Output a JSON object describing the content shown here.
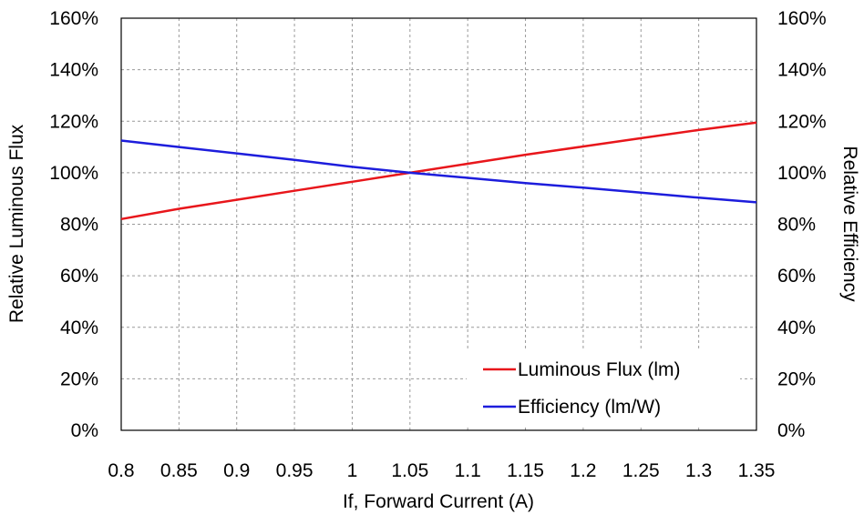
{
  "chart_data": {
    "type": "line",
    "title": "",
    "xlabel": "If, Forward Current (A)",
    "ylabel_left": "Relative Luminous Flux",
    "ylabel_right": "Relative Efficiency",
    "xlim": [
      0.8,
      1.35
    ],
    "ylim": [
      0,
      160
    ],
    "x_ticks": [
      "0.8",
      "0.85",
      "0.9",
      "0.95",
      "1",
      "1.05",
      "1.1",
      "1.15",
      "1.2",
      "1.25",
      "1.3",
      "1.35"
    ],
    "y_ticks_left": [
      "0%",
      "20%",
      "40%",
      "60%",
      "80%",
      "100%",
      "120%",
      "140%",
      "160%"
    ],
    "y_ticks_right": [
      "0%",
      "20%",
      "40%",
      "60%",
      "80%",
      "100%",
      "120%",
      "140%",
      "160%"
    ],
    "grid": true,
    "legend_position": "bottom-right",
    "series": [
      {
        "name": "Luminous Flux (lm)",
        "color": "#e8161b",
        "x": [
          0.8,
          0.85,
          0.9,
          0.95,
          1.0,
          1.05,
          1.1,
          1.15,
          1.2,
          1.25,
          1.3,
          1.35
        ],
        "y": [
          82,
          86,
          89.5,
          93,
          96.5,
          100,
          103.5,
          107,
          110.2,
          113.4,
          116.6,
          119.5
        ]
      },
      {
        "name": "Efficiency (lm/W)",
        "color": "#1d1ddc",
        "x": [
          0.8,
          0.85,
          0.9,
          0.95,
          1.0,
          1.05,
          1.1,
          1.15,
          1.2,
          1.25,
          1.3,
          1.35
        ],
        "y": [
          112.5,
          110,
          107.5,
          105,
          102.3,
          100,
          98,
          96,
          94.2,
          92.3,
          90.3,
          88.5
        ]
      }
    ]
  }
}
